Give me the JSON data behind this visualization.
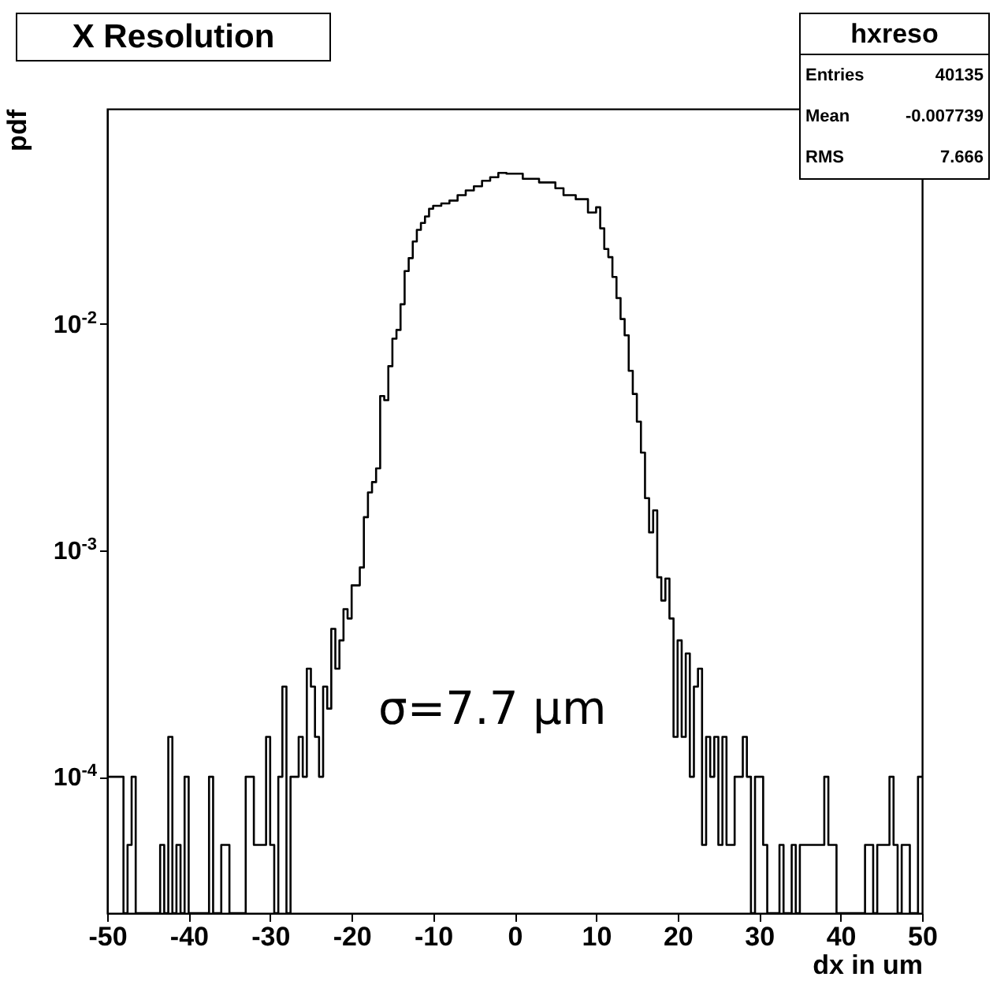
{
  "chart_data": {
    "type": "histogram",
    "title": "X Resolution",
    "xlabel": "dx in um",
    "ylabel": "pdf",
    "annotations": [
      "σ=7.7 µm",
      "hxreso",
      "Entries",
      "40135",
      "Mean",
      "-0.007739",
      "RMS",
      "7.666"
    ],
    "color": "#000000",
    "log": "y",
    "grid": false,
    "xlim": [
      -50,
      50
    ],
    "xticks": [
      -50,
      -40,
      -30,
      -20,
      -10,
      0,
      10,
      20,
      30,
      40,
      50
    ],
    "ylim": [
      2.5e-05,
      0.089
    ],
    "yticks": [
      {
        "value": 0.0001,
        "label": "10$^{-4}$"
      },
      {
        "value": 0.001,
        "label": "10$^{-3}$"
      },
      {
        "value": 0.01,
        "label": "10$^{-2}$"
      }
    ],
    "bins": [
      -50,
      -49.5,
      -49,
      -48.5,
      -48,
      -47.5,
      -47,
      -46.5,
      -46,
      -45.5,
      -45,
      -44.5,
      -44,
      -43.5,
      -43,
      -42.5,
      -42,
      -41.5,
      -41,
      -40.5,
      -40,
      -39.5,
      -39,
      -38.5,
      -38,
      -37.5,
      -37,
      -36.5,
      -36,
      -35.5,
      -35,
      -34.5,
      -34,
      -33.5,
      -33,
      -32.5,
      -32,
      -31.5,
      -31,
      -30.5,
      -30,
      -29.5,
      -29,
      -28.5,
      -28,
      -27.5,
      -27,
      -26.5,
      -26,
      -25.5,
      -25,
      -24.5,
      -24,
      -23.5,
      -23,
      -22.5,
      -22,
      -21.5,
      -21,
      -20.5,
      -20,
      -19.5,
      -19,
      -18.5,
      -18,
      -17.5,
      -17,
      -16.5,
      -16,
      -15.5,
      -15,
      -14.5,
      -14,
      -13.5,
      -13,
      -12.5,
      -12,
      -11.5,
      -11,
      -10.5,
      -10,
      -9.5,
      -9,
      -8.5,
      -8,
      -7.5,
      -7,
      -6.5,
      -6,
      -5.5,
      -5,
      -4.5,
      -4,
      -3.5,
      -3,
      -2.5,
      -2,
      -1.5,
      -1,
      -0.5,
      0,
      0.5,
      1,
      1.5,
      2,
      2.5,
      3,
      3.5,
      4,
      4.5,
      5,
      5.5,
      6,
      6.5,
      7,
      7.5,
      8,
      8.5,
      9,
      9.5,
      10,
      10.5,
      11,
      11.5,
      12,
      12.5,
      13,
      13.5,
      14,
      14.5,
      15,
      15.5,
      16,
      16.5,
      17,
      17.5,
      18,
      18.5,
      19,
      19.5,
      20,
      20.5,
      21,
      21.5,
      22,
      22.5,
      23,
      23.5,
      24,
      24.5,
      25,
      25.5,
      26,
      26.5,
      27,
      27.5,
      28,
      28.5,
      29,
      29.5,
      30,
      30.5,
      31,
      31.5,
      32,
      32.5,
      33,
      33.5,
      34,
      34.5,
      35,
      35.5,
      36,
      36.5,
      37,
      37.5,
      38,
      38.5,
      39,
      39.5,
      40,
      40.5,
      41,
      41.5,
      42,
      42.5,
      43,
      43.5,
      44,
      44.5,
      45,
      45.5,
      46,
      46.5,
      47,
      47.5,
      48,
      48.5,
      49,
      49.5,
      50
    ],
    "values": [
      0.0001,
      0.0001,
      0.0001,
      0.0001,
      null,
      5e-05,
      0.0001,
      null,
      null,
      null,
      null,
      null,
      null,
      5e-05,
      null,
      0.00015,
      null,
      5e-05,
      null,
      0.0001,
      null,
      null,
      null,
      null,
      null,
      0.0001,
      null,
      null,
      5e-05,
      5e-05,
      null,
      null,
      null,
      null,
      0.0001,
      0.0001,
      5e-05,
      5e-05,
      5e-05,
      0.00015,
      5e-05,
      null,
      0.0001,
      0.00025,
      null,
      0.0001,
      0.0001,
      0.00015,
      0.0001,
      0.0003,
      0.00025,
      0.00015,
      0.0001,
      0.00025,
      0.0002,
      0.00045,
      0.0003,
      0.0004,
      0.00055,
      0.0005,
      0.0007,
      0.0007,
      0.00084,
      0.0014,
      0.0018,
      0.002,
      0.0023,
      0.0048,
      0.0046,
      0.0065,
      0.0086,
      0.0094,
      0.0122,
      0.0171,
      0.0195,
      0.0231,
      0.026,
      0.0279,
      0.0298,
      0.0322,
      0.0332,
      0.0332,
      0.034,
      0.034,
      0.035,
      0.035,
      0.037,
      0.037,
      0.0388,
      0.0388,
      0.0405,
      0.0405,
      0.0428,
      0.0428,
      0.0444,
      0.0444,
      0.0464,
      0.0464,
      0.046,
      0.046,
      0.046,
      0.046,
      0.0437,
      0.0437,
      0.0437,
      0.0437,
      0.0421,
      0.0421,
      0.0421,
      0.0421,
      0.0397,
      0.0397,
      0.037,
      0.037,
      0.037,
      0.0355,
      0.0355,
      0.0355,
      0.031,
      0.031,
      0.0327,
      0.0264,
      0.0214,
      0.0197,
      0.0161,
      0.013,
      0.0105,
      0.0089,
      0.0062,
      0.0049,
      0.0037,
      0.0027,
      0.0017,
      0.0012,
      0.0015,
      0.00076,
      0.0006,
      0.00075,
      0.0005,
      0.00015,
      0.0004,
      0.00015,
      0.00035,
      0.0001,
      0.00025,
      0.0003,
      5e-05,
      0.00015,
      0.0001,
      0.00015,
      5e-05,
      0.00015,
      5e-05,
      5e-05,
      0.0001,
      0.0001,
      0.00015,
      0.0001,
      null,
      0.0001,
      0.0001,
      5e-05,
      null,
      null,
      null,
      5e-05,
      null,
      null,
      5e-05,
      null,
      5e-05,
      5e-05,
      5e-05,
      5e-05,
      5e-05,
      5e-05,
      0.0001,
      5e-05,
      5e-05,
      null,
      null,
      null,
      null,
      null,
      null,
      null,
      5e-05,
      5e-05,
      null,
      5e-05,
      5e-05,
      5e-05,
      0.0001,
      5e-05,
      null,
      5e-05,
      5e-05,
      null,
      null,
      0.0001
    ]
  }
}
